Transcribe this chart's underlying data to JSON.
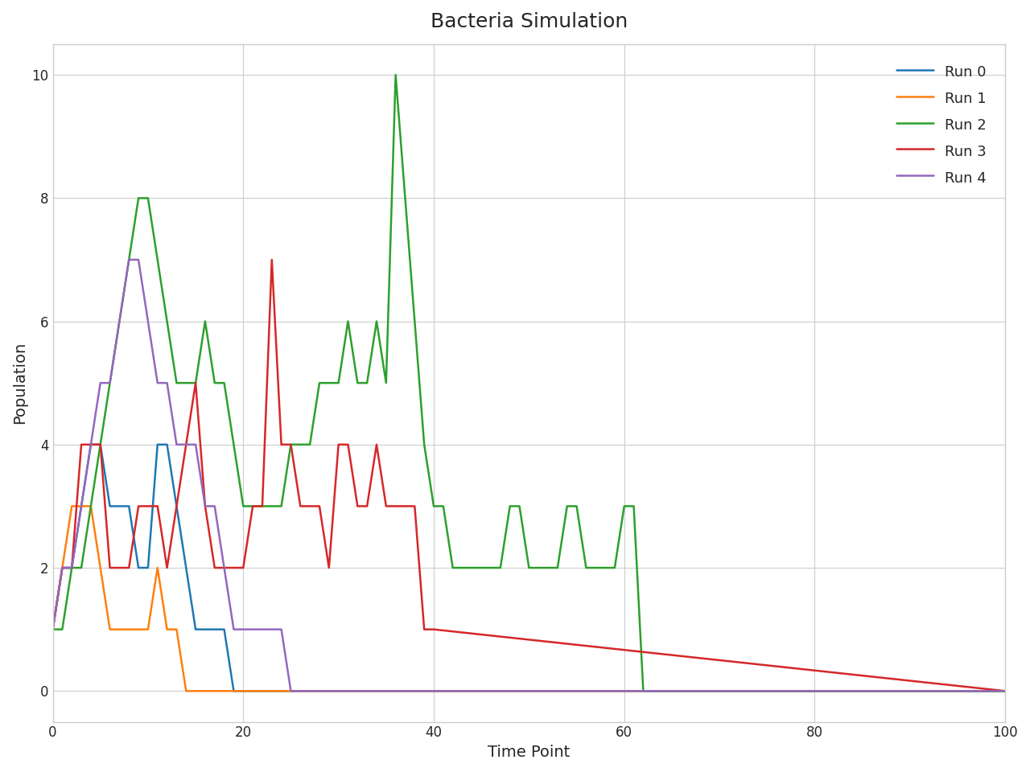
{
  "title": "Bacteria Simulation",
  "xlabel": "Time Point",
  "ylabel": "Population",
  "xlim": [
    0,
    100
  ],
  "ylim": [
    -0.5,
    10.5
  ],
  "style": "seaborn-v0_8-whitegrid",
  "runs": {
    "Run 0": {
      "color": "#1f77b4",
      "x": [
        0,
        1,
        2,
        3,
        4,
        5,
        6,
        7,
        8,
        9,
        10,
        11,
        12,
        13,
        14,
        15,
        16,
        17,
        18,
        19,
        20,
        100
      ],
      "y": [
        1,
        2,
        2,
        3,
        4,
        4,
        3,
        3,
        3,
        2,
        2,
        4,
        4,
        3,
        2,
        1,
        1,
        1,
        1,
        0,
        0,
        0
      ]
    },
    "Run 1": {
      "color": "#ff7f0e",
      "x": [
        0,
        1,
        2,
        3,
        4,
        5,
        6,
        7,
        8,
        9,
        10,
        11,
        12,
        13,
        14,
        100
      ],
      "y": [
        1,
        2,
        3,
        3,
        3,
        2,
        1,
        1,
        1,
        1,
        1,
        2,
        1,
        1,
        0,
        0
      ]
    },
    "Run 2": {
      "color": "#2ca02c",
      "x": [
        0,
        1,
        2,
        3,
        4,
        5,
        6,
        7,
        8,
        9,
        10,
        11,
        12,
        13,
        14,
        15,
        16,
        17,
        18,
        19,
        20,
        21,
        22,
        23,
        24,
        25,
        26,
        27,
        28,
        29,
        30,
        31,
        32,
        33,
        34,
        35,
        36,
        37,
        38,
        39,
        40,
        41,
        42,
        43,
        44,
        45,
        46,
        47,
        48,
        49,
        50,
        51,
        52,
        53,
        54,
        55,
        56,
        57,
        58,
        59,
        60,
        61,
        62,
        100
      ],
      "y": [
        1,
        1,
        2,
        2,
        3,
        4,
        5,
        6,
        7,
        8,
        8,
        7,
        6,
        5,
        5,
        5,
        6,
        5,
        5,
        4,
        3,
        3,
        3,
        3,
        3,
        4,
        4,
        4,
        5,
        5,
        5,
        6,
        5,
        5,
        6,
        5,
        10,
        8,
        6,
        4,
        3,
        3,
        2,
        2,
        2,
        2,
        2,
        2,
        3,
        3,
        2,
        2,
        2,
        2,
        3,
        3,
        2,
        2,
        2,
        2,
        3,
        3,
        0,
        0
      ]
    },
    "Run 3": {
      "color": "#d62728",
      "x": [
        0,
        1,
        2,
        3,
        4,
        5,
        6,
        7,
        8,
        9,
        10,
        11,
        12,
        13,
        14,
        15,
        16,
        17,
        18,
        19,
        20,
        21,
        22,
        23,
        24,
        25,
        26,
        27,
        28,
        29,
        30,
        31,
        32,
        33,
        34,
        35,
        36,
        37,
        38,
        39,
        40,
        100
      ],
      "y": [
        1,
        2,
        2,
        4,
        4,
        4,
        2,
        2,
        2,
        3,
        3,
        3,
        2,
        3,
        4,
        5,
        3,
        2,
        2,
        2,
        2,
        3,
        3,
        7,
        4,
        4,
        3,
        3,
        3,
        2,
        4,
        4,
        3,
        3,
        4,
        3,
        3,
        3,
        3,
        1,
        1,
        0
      ]
    },
    "Run 4": {
      "color": "#9467bd",
      "x": [
        0,
        1,
        2,
        3,
        4,
        5,
        6,
        7,
        8,
        9,
        10,
        11,
        12,
        13,
        14,
        15,
        16,
        17,
        18,
        19,
        20,
        21,
        22,
        23,
        24,
        25,
        100
      ],
      "y": [
        1,
        2,
        2,
        3,
        4,
        5,
        5,
        6,
        7,
        7,
        6,
        5,
        5,
        4,
        4,
        4,
        3,
        3,
        2,
        1,
        1,
        1,
        1,
        1,
        1,
        0,
        0
      ]
    }
  }
}
